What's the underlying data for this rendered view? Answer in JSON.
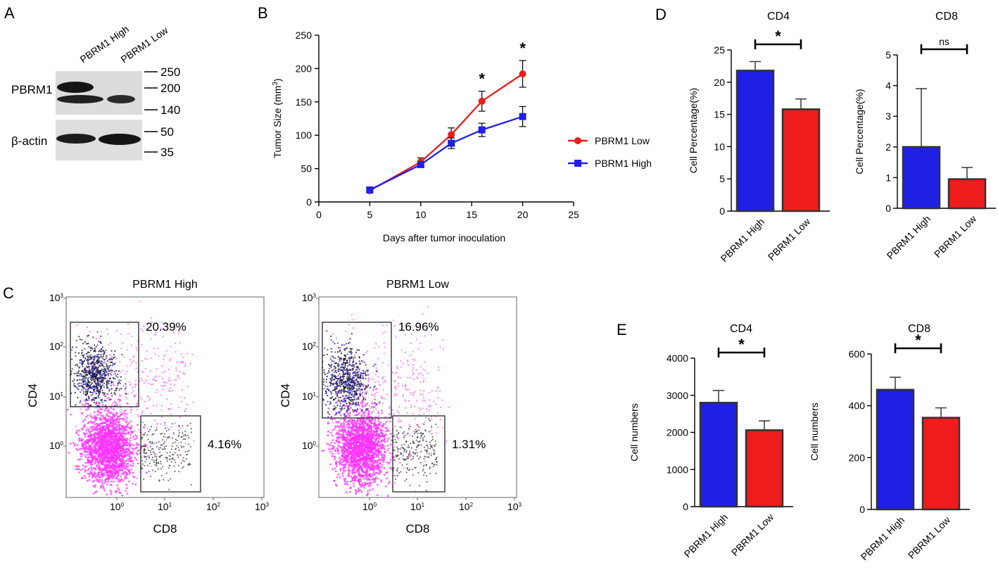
{
  "panels": {
    "A": "A",
    "B": "B",
    "C": "C",
    "D": "D",
    "E": "E"
  },
  "blot": {
    "lanes": [
      "PBRM1 High",
      "PBRM1 Low"
    ],
    "proteins": [
      "PBRM1",
      "β-actin"
    ],
    "markers": [
      "250",
      "200",
      "140",
      "50",
      "35"
    ]
  },
  "colors": {
    "low": "#ee1c1c",
    "high": "#1f1fe6",
    "magenta": "#ff33ff",
    "navy": "#2a2ad0"
  },
  "chart_data": [
    {
      "id": "tumor",
      "type": "line",
      "xlabel": "Days after tumor inoculation",
      "ylabel": "Tumor Size (mm",
      "ylabel_sup": "3",
      "ylabel_end": ")",
      "xlim": [
        0,
        25
      ],
      "ylim": [
        0,
        250
      ],
      "xticks": [
        "0",
        "5",
        "10",
        "15",
        "20",
        "25"
      ],
      "yticks": [
        "0",
        "50",
        "100",
        "150",
        "200",
        "250"
      ],
      "series": [
        {
          "name": "PBRM1 Low",
          "color": "#ee1c1c",
          "marker": "circle",
          "x": [
            5,
            10,
            13,
            16,
            20
          ],
          "y": [
            17,
            60,
            101,
            151,
            192
          ],
          "err": [
            2,
            6,
            10,
            15,
            20
          ]
        },
        {
          "name": "PBRM1 High",
          "color": "#1f1fe6",
          "marker": "square",
          "x": [
            5,
            10,
            13,
            16,
            20
          ],
          "y": [
            18,
            56,
            88,
            108,
            128
          ],
          "err": [
            2,
            4,
            8,
            10,
            15
          ]
        }
      ],
      "significance": [
        "*",
        "*"
      ],
      "legend": "right"
    },
    {
      "id": "d_cd4",
      "type": "bar",
      "title": "CD4",
      "ylabel": "Cell Percentage(%)",
      "categories": [
        "PBRM1 High",
        "PBRM1 Low"
      ],
      "values": [
        21.8,
        15.8
      ],
      "err": [
        1.4,
        1.6
      ],
      "ylim": [
        0,
        25
      ],
      "yticks": [
        "0",
        "5",
        "10",
        "15",
        "20",
        "25"
      ],
      "significance": "*"
    },
    {
      "id": "d_cd8",
      "type": "bar",
      "title": "CD8",
      "ylabel": "Cell Percentage(%)",
      "categories": [
        "PBRM1 High",
        "PBRM1 Low"
      ],
      "values": [
        2.0,
        0.95
      ],
      "err": [
        1.9,
        0.38
      ],
      "ylim": [
        0,
        5
      ],
      "yticks": [
        "0",
        "1",
        "2",
        "3",
        "4",
        "5"
      ],
      "significance": "ns"
    },
    {
      "id": "e_cd4",
      "type": "bar",
      "title": "CD4",
      "ylabel": "Cell numbers",
      "categories": [
        "PBRM1 High",
        "PBRM1 Low"
      ],
      "values": [
        2800,
        2060
      ],
      "err": [
        330,
        250
      ],
      "ylim": [
        0,
        4000
      ],
      "yticks": [
        "0",
        "1000",
        "2000",
        "3000",
        "4000"
      ],
      "significance": "*"
    },
    {
      "id": "e_cd8",
      "type": "bar",
      "title": "CD8",
      "ylabel": "Cell numbers",
      "categories": [
        "PBRM1 High",
        "PBRM1 Low"
      ],
      "values": [
        462,
        354
      ],
      "err": [
        48,
        38
      ],
      "ylim": [
        0,
        600
      ],
      "yticks": [
        "0",
        "200",
        "400",
        "600"
      ],
      "significance": "*"
    },
    {
      "id": "flow_high",
      "type": "scatter",
      "title": "PBRM1 High",
      "xlabel": "CD8",
      "ylabel": "CD4",
      "scale": "log",
      "xticks": [
        "10",
        "10",
        "10",
        "10"
      ],
      "xtick_exp": [
        "0",
        "1",
        "2",
        "3"
      ],
      "yticks": [
        "10",
        "10",
        "10",
        "10"
      ],
      "ytick_exp": [
        "0",
        "1",
        "2",
        "3"
      ],
      "gate_cd4": "20.39%",
      "gate_cd8": "4.16%"
    },
    {
      "id": "flow_low",
      "type": "scatter",
      "title": "PBRM1 Low",
      "xlabel": "CD8",
      "ylabel": "CD4",
      "scale": "log",
      "xticks": [
        "10",
        "10",
        "10",
        "10"
      ],
      "xtick_exp": [
        "0",
        "1",
        "2",
        "3"
      ],
      "yticks": [
        "10",
        "10",
        "10",
        "10"
      ],
      "ytick_exp": [
        "0",
        "1",
        "2",
        "3"
      ],
      "gate_cd4": "16.96%",
      "gate_cd8": "1.31%"
    }
  ]
}
